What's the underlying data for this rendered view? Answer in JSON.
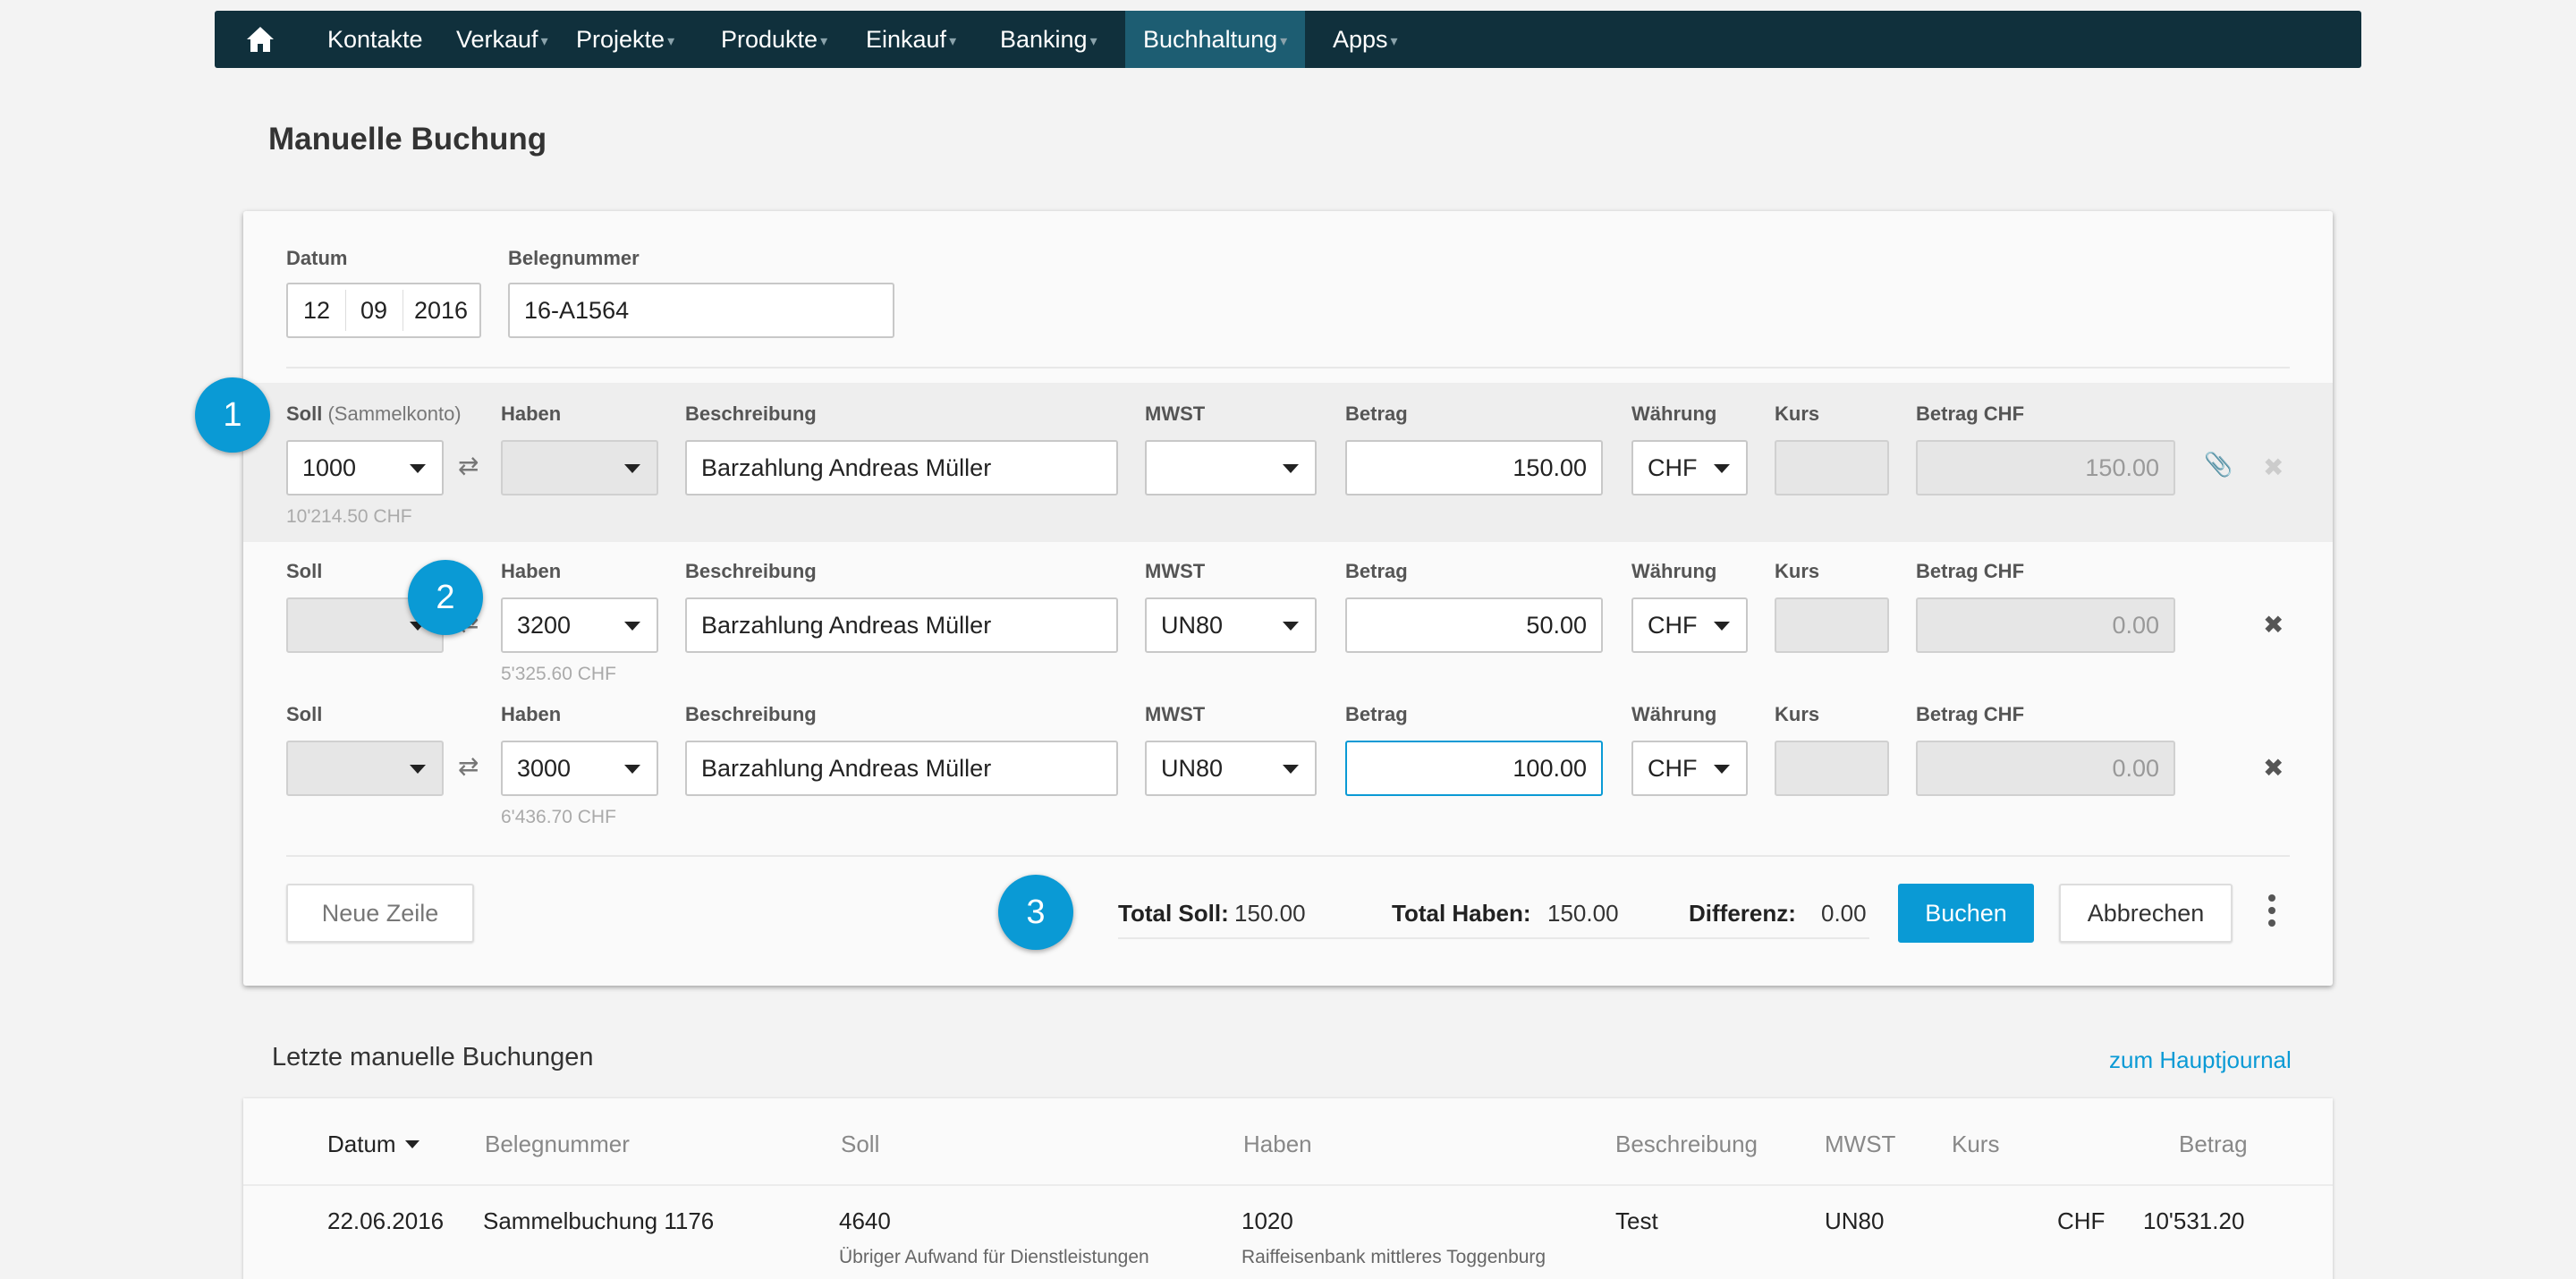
{
  "nav": {
    "items": [
      {
        "label": "Kontakte",
        "caret": false
      },
      {
        "label": "Verkauf",
        "caret": true
      },
      {
        "label": "Projekte",
        "caret": true
      },
      {
        "label": "Produkte",
        "caret": true
      },
      {
        "label": "Einkauf",
        "caret": true
      },
      {
        "label": "Banking",
        "caret": true
      },
      {
        "label": "Buchhaltung",
        "caret": true,
        "active": true
      },
      {
        "label": "Apps",
        "caret": true
      }
    ],
    "caret_glyph": "▾"
  },
  "page_title": "Manuelle Buchung",
  "header": {
    "date_label": "Datum",
    "date": {
      "day": "12",
      "month": "09",
      "year": "2016"
    },
    "doc_label": "Belegnummer",
    "doc_value": "16-A1564"
  },
  "columns": {
    "soll": "Soll",
    "soll_sub": "(Sammelkonto)",
    "haben": "Haben",
    "beschreibung": "Beschreibung",
    "mwst": "MWST",
    "betrag": "Betrag",
    "waehrung": "Währung",
    "kurs": "Kurs",
    "betrag_chf": "Betrag CHF"
  },
  "rows": [
    {
      "soll": "1000",
      "soll_hint": "10'214.50 CHF",
      "haben": "",
      "haben_hint": "",
      "beschreibung": "Barzahlung Andreas Müller",
      "mwst": "",
      "betrag": "150.00",
      "waehrung": "CHF",
      "kurs": "",
      "betrag_chf": "150.00"
    },
    {
      "soll": "",
      "soll_hint": "",
      "haben": "3200",
      "haben_hint": "5'325.60 CHF",
      "beschreibung": "Barzahlung Andreas Müller",
      "mwst": "UN80",
      "betrag": "50.00",
      "waehrung": "CHF",
      "kurs": "",
      "betrag_chf": "0.00"
    },
    {
      "soll": "",
      "soll_hint": "",
      "haben": "3000",
      "haben_hint": "6'436.70 CHF",
      "beschreibung": "Barzahlung Andreas Müller",
      "mwst": "UN80",
      "betrag": "100.00",
      "waehrung": "CHF",
      "kurs": "",
      "betrag_chf": "0.00"
    }
  ],
  "badges": [
    "1",
    "2",
    "3"
  ],
  "footer": {
    "new_row": "Neue Zeile",
    "total_soll_label": "Total Soll:",
    "total_soll": "150.00",
    "total_haben_label": "Total Haben:",
    "total_haben": "150.00",
    "diff_label": "Differenz:",
    "diff": "0.00",
    "book": "Buchen",
    "cancel": "Abbrechen"
  },
  "recent": {
    "title": "Letzte manuelle Buchungen",
    "link": "zum Hauptjournal",
    "headers": {
      "datum": "Datum",
      "beleg": "Belegnummer",
      "soll": "Soll",
      "haben": "Haben",
      "beschreibung": "Beschreibung",
      "mwst": "MWST",
      "kurs": "Kurs",
      "betrag": "Betrag"
    },
    "rows": [
      {
        "datum": "22.06.2016",
        "beleg": "Sammelbuchung 1176",
        "soll": "4640",
        "soll_sub": "Übriger Aufwand für Dienstleistungen",
        "haben": "1020",
        "haben_sub": "Raiffeisenbank mittleres Toggenburg",
        "beschreibung": "Test",
        "mwst": "UN80",
        "kurs": "",
        "currency": "CHF",
        "betrag": "10'531.20"
      }
    ]
  },
  "icons": {
    "home": "home-icon",
    "swap": "swap-arrows-icon",
    "attach": "paperclip-icon",
    "remove": "close-icon",
    "more": "more-vertical-icon",
    "dropdown": "chevron-down-icon"
  },
  "colors": {
    "nav_bg": "#10303c",
    "nav_active": "#1d5d72",
    "accent": "#0a9ad5"
  }
}
